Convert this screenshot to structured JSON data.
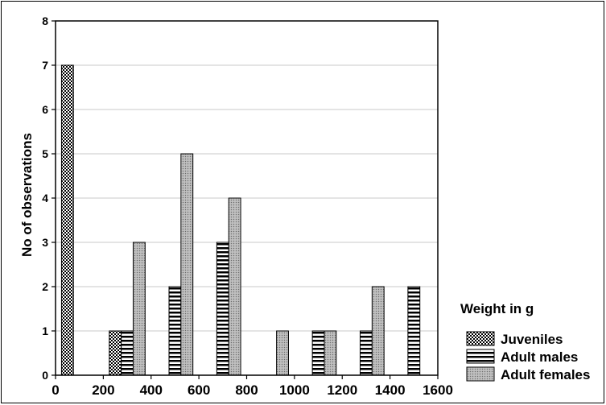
{
  "chart_data": {
    "type": "bar",
    "title": "",
    "xlabel": "",
    "ylabel": "No of observations",
    "xlim": [
      0,
      1600
    ],
    "ylim": [
      0,
      8
    ],
    "x_ticks": [
      0,
      200,
      400,
      600,
      800,
      1000,
      1200,
      1400,
      1600
    ],
    "y_ticks": [
      0,
      1,
      2,
      3,
      4,
      5,
      6,
      7,
      8
    ],
    "grid": true,
    "legend": {
      "title": "Weight in g",
      "placement": "right-bottom",
      "entries": [
        "Juveniles",
        "Adult males",
        "Adult females"
      ]
    },
    "series": [
      {
        "name": "Juveniles",
        "pattern": "checker",
        "points": [
          {
            "x": 50,
            "y": 7
          },
          {
            "x": 250,
            "y": 1
          }
        ]
      },
      {
        "name": "Adult males",
        "pattern": "horizontal-stripes",
        "points": [
          {
            "x": 300,
            "y": 1
          },
          {
            "x": 500,
            "y": 2
          },
          {
            "x": 700,
            "y": 3
          },
          {
            "x": 1100,
            "y": 1
          },
          {
            "x": 1300,
            "y": 1
          },
          {
            "x": 1500,
            "y": 2
          }
        ]
      },
      {
        "name": "Adult females",
        "pattern": "dotted-gray",
        "points": [
          {
            "x": 350,
            "y": 3
          },
          {
            "x": 550,
            "y": 5
          },
          {
            "x": 750,
            "y": 4
          },
          {
            "x": 950,
            "y": 1
          },
          {
            "x": 1150,
            "y": 1
          },
          {
            "x": 1350,
            "y": 2
          }
        ]
      }
    ],
    "colors": {
      "axis": "#000000",
      "grid": "#c8c8c8",
      "female_fill": "#b4b4b4"
    }
  }
}
